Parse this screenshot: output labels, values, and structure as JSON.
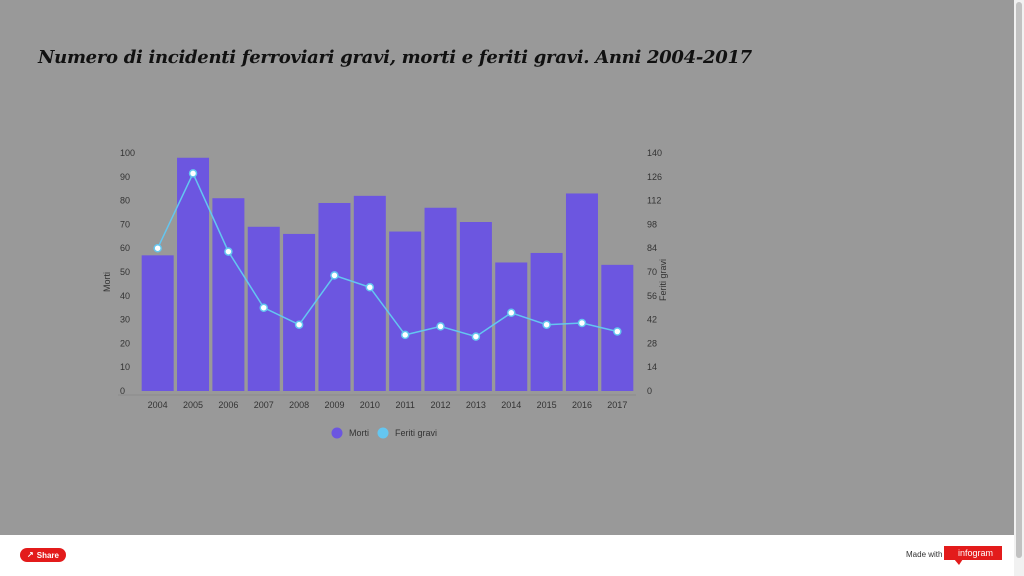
{
  "title": "Numero di incidenti ferroviari gravi, morti e feriti gravi.  Anni 2004-2017",
  "chart_data": {
    "type": "bar",
    "categories": [
      "2004",
      "2005",
      "2006",
      "2007",
      "2008",
      "2009",
      "2010",
      "2011",
      "2012",
      "2013",
      "2014",
      "2015",
      "2016",
      "2017"
    ],
    "series": [
      {
        "name": "Morti",
        "type": "bar",
        "axis": "left",
        "color": "#6c56e0",
        "values": [
          57,
          98,
          81,
          69,
          66,
          79,
          82,
          67,
          77,
          71,
          54,
          58,
          83,
          53
        ]
      },
      {
        "name": "Feriti gravi",
        "type": "line",
        "axis": "right",
        "color": "#64c6f0",
        "values": [
          84,
          128,
          82,
          49,
          39,
          68,
          61,
          33,
          38,
          32,
          46,
          39,
          40,
          35
        ]
      }
    ],
    "ylabel": "Morti",
    "ylabel_right": "Feriti gravi",
    "ylim": [
      0,
      100
    ],
    "ylim_right": [
      0,
      140
    ],
    "yticks": [
      "0",
      "10",
      "20",
      "30",
      "40",
      "50",
      "60",
      "70",
      "80",
      "90",
      "100"
    ],
    "yticks_right": [
      "0",
      "14",
      "28",
      "42",
      "56",
      "70",
      "84",
      "98",
      "112",
      "126",
      "140"
    ],
    "grid": false,
    "legend_position": "bottom"
  },
  "footer": {
    "share_label": "Share",
    "made_with": "Made with",
    "brand": "infogram"
  }
}
